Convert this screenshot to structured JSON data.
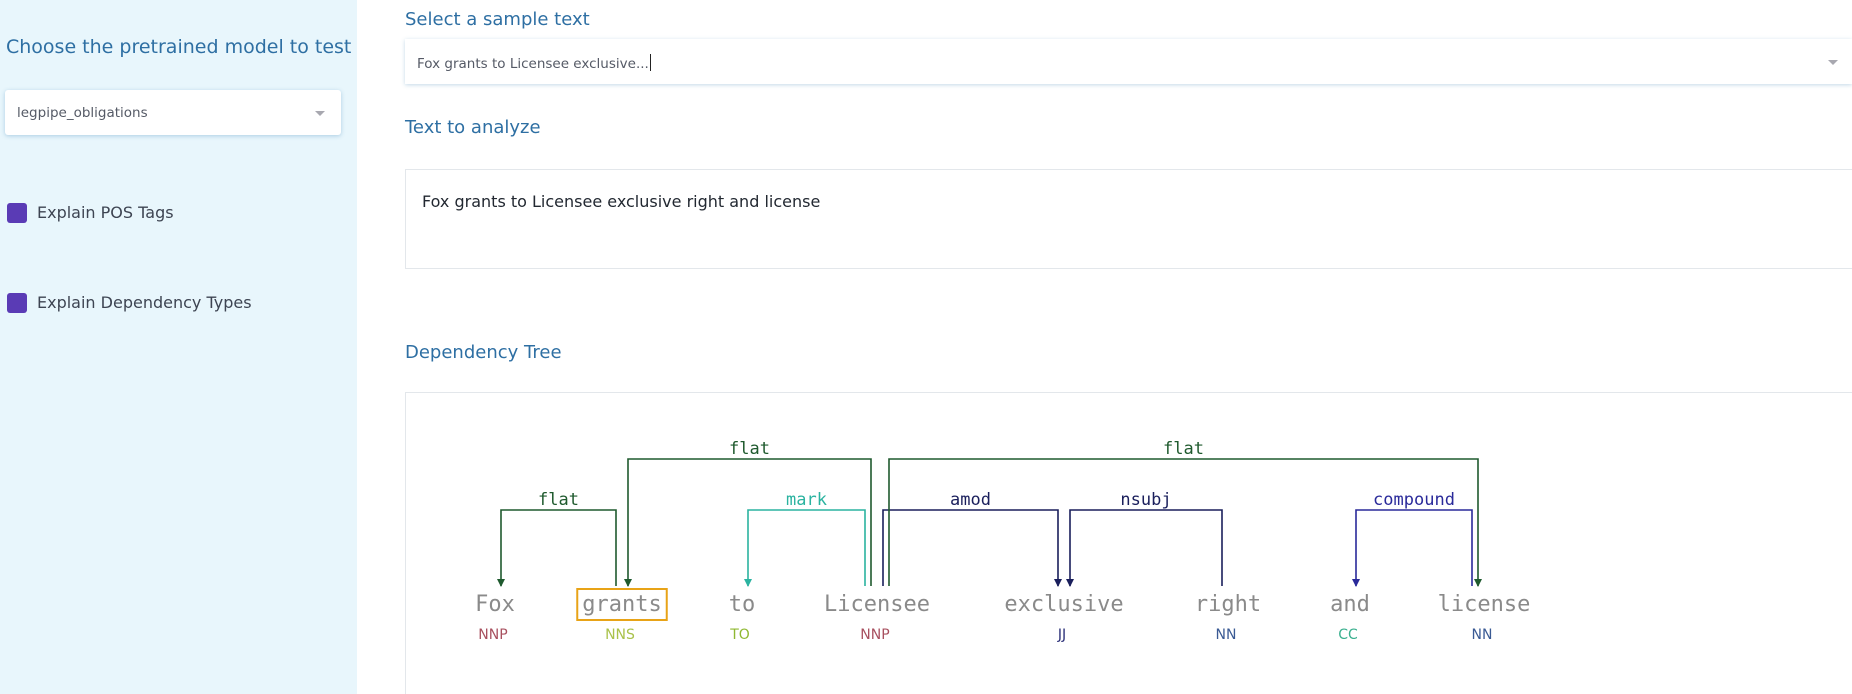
{
  "sidebar": {
    "model_heading": "Choose the pretrained model to test",
    "model_value": "legpipe_obligations",
    "checkboxes": [
      {
        "label": "Explain POS Tags",
        "checked": true
      },
      {
        "label": "Explain Dependency Types",
        "checked": true
      }
    ]
  },
  "main": {
    "sample_heading": "Select a sample text",
    "sample_value": "Fox grants to Licensee exclusive...",
    "analyze_heading": "Text to analyze",
    "analyze_value": "Fox grants to Licensee exclusive right and license",
    "tree_heading": "Dependency Tree"
  },
  "colors": {
    "accent": "#2e6fa3",
    "sidebar_bg": "#e8f6fc",
    "checkbox": "#5a3bb5",
    "highlight_box": "#e8a317"
  },
  "dependency_tree": {
    "highlighted_token": 1,
    "tokens": [
      {
        "word": "Fox",
        "tag": "NNP",
        "tag_color": "#a8505f"
      },
      {
        "word": "grants",
        "tag": "NNS",
        "tag_color": "#a9c24a"
      },
      {
        "word": "to",
        "tag": "TO",
        "tag_color": "#8fb831"
      },
      {
        "word": "Licensee",
        "tag": "NNP",
        "tag_color": "#a8505f"
      },
      {
        "word": "exclusive",
        "tag": "JJ",
        "tag_color": "#2a2f78"
      },
      {
        "word": "right",
        "tag": "NN",
        "tag_color": "#3a5a94"
      },
      {
        "word": "and",
        "tag": "CC",
        "tag_color": "#3bb08f"
      },
      {
        "word": "license",
        "tag": "NN",
        "tag_color": "#3a5a94"
      }
    ],
    "arcs": [
      {
        "head": 1,
        "dep": 0,
        "label": "flat",
        "color": "#1f5a2e",
        "level": 1
      },
      {
        "head": 3,
        "dep": 1,
        "label": "flat",
        "color": "#1f5a2e",
        "level": 2
      },
      {
        "head": 3,
        "dep": 2,
        "label": "mark",
        "color": "#2bb3a0",
        "level": 1
      },
      {
        "head": 3,
        "dep": 4,
        "label": "amod",
        "color": "#1a1f5c",
        "level": 1
      },
      {
        "head": 5,
        "dep": 4,
        "label": "nsubj",
        "color": "#1a1f5c",
        "level": 1
      },
      {
        "head": 3,
        "dep": 7,
        "label": "flat",
        "color": "#1f5a2e",
        "level": 2
      },
      {
        "head": 7,
        "dep": 6,
        "label": "compound",
        "color": "#2a2a9a",
        "level": 1
      }
    ]
  }
}
